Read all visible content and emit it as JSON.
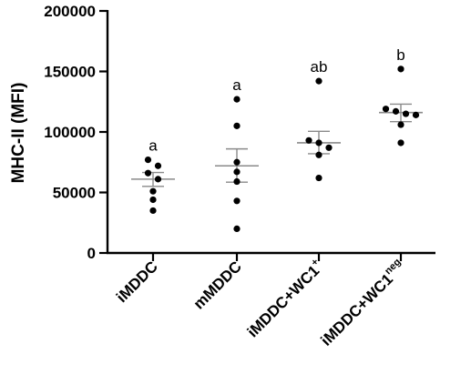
{
  "chart_data": {
    "type": "scatter",
    "ylabel": "MHC-II (MFI)",
    "ylim": [
      0,
      200000
    ],
    "yticks": [
      0,
      50000,
      100000,
      150000,
      200000
    ],
    "ytick_labels": [
      "0",
      "50000",
      "100000",
      "150000",
      "200000"
    ],
    "groups": [
      {
        "label": "iMDDC",
        "sup": "",
        "significance": "a",
        "mean": 61000,
        "sem_low": 55000,
        "sem_high": 66500,
        "points": [
          77000,
          72000,
          66000,
          61000,
          51000,
          44000,
          35000
        ]
      },
      {
        "label": "mMDDC",
        "sup": "",
        "significance": "a",
        "mean": 72000,
        "sem_low": 58500,
        "sem_high": 86000,
        "points": [
          127000,
          105000,
          75000,
          67000,
          59000,
          43000,
          20000
        ]
      },
      {
        "label": "iMDDC+WC1",
        "sup": "+",
        "significance": "ab",
        "mean": 91000,
        "sem_low": 82000,
        "sem_high": 100500,
        "points": [
          142000,
          93000,
          91000,
          87000,
          81000,
          62000
        ]
      },
      {
        "label": "iMDDC+WC1",
        "sup": "neg",
        "significance": "b",
        "mean": 116000,
        "sem_low": 108500,
        "sem_high": 123000,
        "points": [
          152000,
          119000,
          117000,
          115000,
          114000,
          106000,
          91000
        ]
      }
    ]
  }
}
